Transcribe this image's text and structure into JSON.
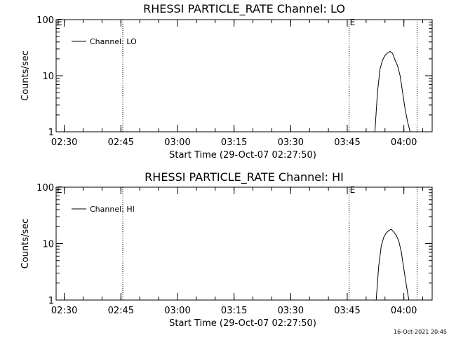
{
  "timestamp": "16-Oct-2021 20:45",
  "chart_data": [
    {
      "type": "line",
      "title": "RHESSI PARTICLE_RATE Channel: LO",
      "xlabel": "Start Time (29-Oct-07 02:27:50)",
      "ylabel": "Counts/sec",
      "y_scale": "log",
      "ylim": [
        1,
        100
      ],
      "xlim": [
        "02:27:50",
        "04:07:30"
      ],
      "x_ticks": [
        "02:30",
        "02:45",
        "03:00",
        "03:15",
        "03:30",
        "03:45",
        "04:00"
      ],
      "y_ticks": [
        "1",
        "10",
        "100"
      ],
      "legend": {
        "label": "Channel: LO",
        "position": "top-left"
      },
      "markers": [
        {
          "label": "E",
          "time": "02:27:50"
        },
        {
          "label": "E",
          "time": "03:45:30"
        }
      ],
      "vlines": [
        "02:45:30",
        "03:45:30",
        "04:03:30"
      ],
      "series": [
        {
          "name": "Channel: LO",
          "x": [
            "03:52:20",
            "03:53:00",
            "03:53:40",
            "03:54:20",
            "03:55:00",
            "03:55:40",
            "03:56:20",
            "03:57:00",
            "03:57:40",
            "03:58:20",
            "03:59:00",
            "03:59:40",
            "04:00:20",
            "04:01:00",
            "04:01:40"
          ],
          "y": [
            1,
            5,
            13,
            19,
            23,
            25.5,
            27,
            25,
            19,
            15,
            10,
            5,
            2.5,
            1.5,
            1
          ]
        }
      ]
    },
    {
      "type": "line",
      "title": "RHESSI PARTICLE_RATE Channel: HI",
      "xlabel": "Start Time (29-Oct-07 02:27:50)",
      "ylabel": "Counts/sec",
      "y_scale": "log",
      "ylim": [
        1,
        100
      ],
      "xlim": [
        "02:27:50",
        "04:07:30"
      ],
      "x_ticks": [
        "02:30",
        "02:45",
        "03:00",
        "03:15",
        "03:30",
        "03:45",
        "04:00"
      ],
      "y_ticks": [
        "1",
        "10",
        "100"
      ],
      "legend": {
        "label": "Channel: HI",
        "position": "top-left"
      },
      "markers": [
        {
          "label": "E",
          "time": "02:27:50"
        },
        {
          "label": "E",
          "time": "03:45:30"
        }
      ],
      "vlines": [
        "02:45:30",
        "03:45:30",
        "04:03:30"
      ],
      "series": [
        {
          "name": "Channel: HI",
          "x": [
            "03:52:40",
            "03:53:20",
            "03:54:00",
            "03:54:40",
            "03:55:20",
            "03:56:00",
            "03:56:40",
            "03:57:20",
            "03:58:00",
            "03:58:40",
            "03:59:20",
            "04:00:00",
            "04:00:40",
            "04:01:20"
          ],
          "y": [
            1,
            4,
            9,
            13,
            15.5,
            17,
            18,
            16,
            14,
            11,
            7,
            3.5,
            1.8,
            1
          ]
        }
      ]
    }
  ]
}
